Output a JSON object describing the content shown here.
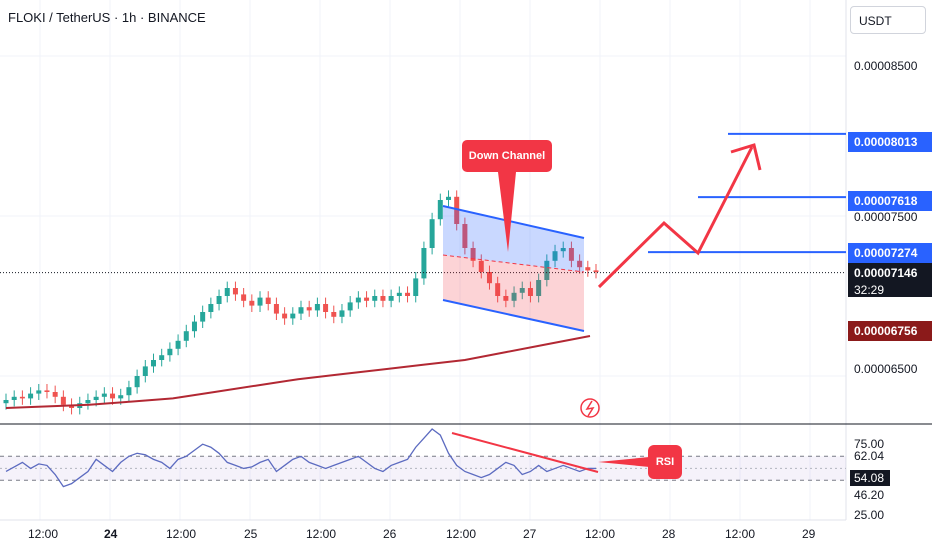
{
  "title": "FLOKI / TetherUS · 1h · BINANCE",
  "currency": "USDT",
  "price_axis": [
    "0.00008500",
    "0.00007500",
    "0.00006500"
  ],
  "price_badges": [
    {
      "label": "0.00008013",
      "color": "#2962ff"
    },
    {
      "label": "0.00007618",
      "color": "#2962ff"
    },
    {
      "label": "0.00007274",
      "color": "#2962ff"
    },
    {
      "label": "0.00007146",
      "color": "#131722"
    },
    {
      "label": "0.00006756",
      "color": "#8b1a1a"
    }
  ],
  "countdown": "32:29",
  "rsi_axis": [
    "75.00",
    "62.04",
    "54.08",
    "46.20",
    "25.00"
  ],
  "time_axis": [
    "12:00",
    "24",
    "12:00",
    "25",
    "12:00",
    "26",
    "12:00",
    "27",
    "12:00",
    "28",
    "12:00",
    "29"
  ],
  "annotations": {
    "channel": "Down Channel",
    "rsi": "RSI"
  },
  "colors": {
    "up": "#26a69a",
    "down": "#ef5350",
    "ma": "#b22833",
    "target": "#2962ff",
    "arrow": "#f23645"
  },
  "chart_data": {
    "type": "candlestick",
    "title": "FLOKI / TetherUS · 1h · BINANCE",
    "ylim": [
      6.2e-05,
      8.85e-05
    ],
    "y_ticks": [
      8.5e-05,
      7.5e-05,
      6.5e-05
    ],
    "current_price": 7.146e-05,
    "levels": [
      8.013e-05,
      7.618e-05,
      7.274e-05,
      6.756e-05
    ],
    "candles_close": [
      6.35e-05,
      6.37e-05,
      6.36e-05,
      6.39e-05,
      6.41e-05,
      6.4e-05,
      6.37e-05,
      6.32e-05,
      6.3e-05,
      6.33e-05,
      6.35e-05,
      6.37e-05,
      6.39e-05,
      6.36e-05,
      6.38e-05,
      6.43e-05,
      6.5e-05,
      6.56e-05,
      6.6e-05,
      6.63e-05,
      6.67e-05,
      6.72e-05,
      6.78e-05,
      6.84e-05,
      6.9e-05,
      6.95e-05,
      7e-05,
      7.05e-05,
      7.01e-05,
      6.97e-05,
      6.94e-05,
      6.99e-05,
      6.95e-05,
      6.89e-05,
      6.86e-05,
      6.89e-05,
      6.93e-05,
      6.91e-05,
      6.95e-05,
      6.9e-05,
      6.87e-05,
      6.91e-05,
      6.96e-05,
      6.99e-05,
      6.97e-05,
      7e-05,
      6.97e-05,
      7e-05,
      7.02e-05,
      7e-05,
      7.11e-05,
      7.3e-05,
      7.48e-05,
      7.6e-05,
      7.62e-05,
      7.45e-05,
      7.3e-05,
      7.22e-05,
      7.15e-05,
      7.08e-05,
      7e-05,
      6.97e-05,
      7.02e-05,
      7.05e-05,
      7e-05,
      7.1e-05,
      7.22e-05,
      7.28e-05,
      7.3e-05,
      7.22e-05,
      7.18e-05,
      7.16e-05,
      7.15e-05
    ],
    "ma": [
      6.3e-05,
      6.31e-05,
      6.32e-05,
      6.34e-05,
      6.36e-05,
      6.4e-05,
      6.44e-05,
      6.48e-05,
      6.51e-05,
      6.54e-05,
      6.57e-05,
      6.6e-05,
      6.65e-05,
      6.7e-05,
      6.75e-05
    ],
    "rsi_ticks": [
      75,
      62.04,
      54.08,
      46.2,
      25
    ],
    "rsi_ylim": [
      20,
      82
    ],
    "rsi": [
      52,
      55,
      58,
      54,
      57,
      56,
      50,
      42,
      44,
      48,
      52,
      60,
      56,
      52,
      58,
      62,
      64,
      63,
      60,
      58,
      54,
      60,
      62,
      66,
      70,
      68,
      64,
      58,
      56,
      54,
      55,
      58,
      60,
      52,
      56,
      60,
      62,
      58,
      56,
      54,
      56,
      58,
      60,
      62,
      58,
      54,
      52,
      56,
      58,
      60,
      68,
      74,
      80,
      76,
      64,
      56,
      52,
      50,
      48,
      50,
      54,
      58,
      56,
      50,
      52,
      56,
      52,
      54,
      56,
      54,
      52,
      54,
      54
    ]
  }
}
